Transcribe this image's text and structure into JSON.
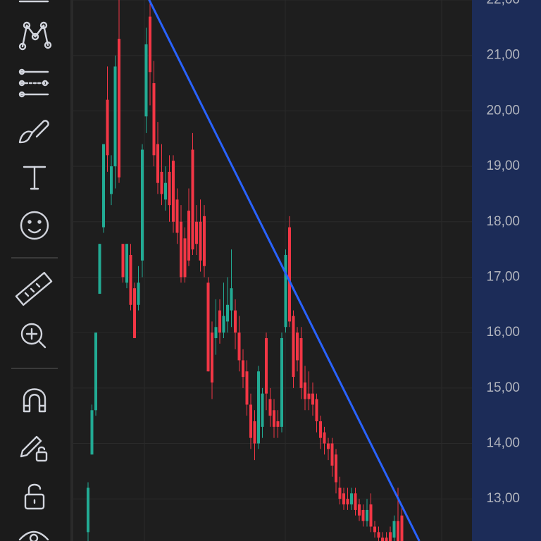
{
  "chart_data": {
    "type": "candlestick",
    "open": [
      12.4,
      13.8,
      14.6,
      16.7,
      17.9,
      20.2,
      18.5,
      19.0,
      21.3,
      17.6,
      16.9,
      17.4,
      16.8,
      16.5,
      17.3,
      19.9,
      21.7,
      20.5,
      19.4,
      18.9,
      18.4,
      18.9,
      19.1,
      18.4,
      18.0,
      17.7,
      18.2,
      19.3,
      18.0,
      18.0,
      18.1,
      16.9,
      16.0,
      15.9,
      16.4,
      16.0,
      16.2,
      16.4,
      16.4,
      16.0,
      15.5,
      15.3,
      14.7,
      14.4,
      14.0,
      14.3,
      15.9,
      14.8,
      14.6,
      14.4,
      14.3,
      16.1,
      17.9,
      16.3,
      16.0,
      15.9,
      15.1,
      14.9,
      14.9,
      14.8,
      14.4,
      14.2,
      14.0,
      14.0,
      13.8,
      13.2,
      13.1,
      13.0,
      12.9,
      13.1,
      12.9,
      12.8,
      12.6,
      12.9,
      12.5,
      12.4,
      12.3,
      12.3,
      12.4,
      12.3,
      12.6,
      12.7
    ],
    "high": [
      13.3,
      14.7,
      16.0,
      17.6,
      19.4,
      20.8,
      19.2,
      21.0,
      22.0,
      17.6,
      17.6,
      17.6,
      16.9,
      17.2,
      19.4,
      21.5,
      22.1,
      20.9,
      19.8,
      19.4,
      19.0,
      19.2,
      19.2,
      18.6,
      18.3,
      17.9,
      18.6,
      19.6,
      18.3,
      18.4,
      18.3,
      17.0,
      16.2,
      16.6,
      16.6,
      16.9,
      17.0,
      17.5,
      16.6,
      16.3,
      15.7,
      15.5,
      14.9,
      14.6,
      15.4,
      15.0,
      16.0,
      15.0,
      14.8,
      14.6,
      16.0,
      17.5,
      18.1,
      16.4,
      16.1,
      16.1,
      15.4,
      15.3,
      15.1,
      14.9,
      14.5,
      14.3,
      14.1,
      14.1,
      13.9,
      13.4,
      13.2,
      13.2,
      13.2,
      13.2,
      13.0,
      12.9,
      13.0,
      13.1,
      12.6,
      12.5,
      12.4,
      12.4,
      12.5,
      12.7,
      13.2,
      12.9
    ],
    "low": [
      12.2,
      13.8,
      14.5,
      16.7,
      17.8,
      18.9,
      18.3,
      18.6,
      18.7,
      16.9,
      16.8,
      16.4,
      15.9,
      16.4,
      17.0,
      19.6,
      20.1,
      19.0,
      18.5,
      18.3,
      18.2,
      18.0,
      17.8,
      17.6,
      16.9,
      16.9,
      17.2,
      17.4,
      17.4,
      17.1,
      17.0,
      15.3,
      14.8,
      15.6,
      15.8,
      15.9,
      16.0,
      16.1,
      15.7,
      15.3,
      15.0,
      14.5,
      13.9,
      13.7,
      13.9,
      14.1,
      14.6,
      14.3,
      14.1,
      14.1,
      14.2,
      16.0,
      16.1,
      15.0,
      15.3,
      14.8,
      14.6,
      14.6,
      14.5,
      14.2,
      13.9,
      13.8,
      13.7,
      13.4,
      13.1,
      12.9,
      12.8,
      12.8,
      12.8,
      12.7,
      12.6,
      12.5,
      12.5,
      12.4,
      12.3,
      12.2,
      12.1,
      12.1,
      12.1,
      12.2,
      12.1,
      12.1
    ],
    "close": [
      13.2,
      14.6,
      16.0,
      17.6,
      19.4,
      19.2,
      19.0,
      20.8,
      18.8,
      17.0,
      17.6,
      16.5,
      15.9,
      16.9,
      19.3,
      21.2,
      20.7,
      19.2,
      18.7,
      18.5,
      18.7,
      18.3,
      18.0,
      17.8,
      17.0,
      17.0,
      17.3,
      17.5,
      17.6,
      17.3,
      17.2,
      15.3,
      15.1,
      16.1,
      16.0,
      16.3,
      16.5,
      16.8,
      16.0,
      15.5,
      15.2,
      14.7,
      14.1,
      14.0,
      15.3,
      14.9,
      14.9,
      14.5,
      14.3,
      14.3,
      15.9,
      17.4,
      16.2,
      15.2,
      15.5,
      15.0,
      14.8,
      14.8,
      14.7,
      14.4,
      14.1,
      14.0,
      13.9,
      13.6,
      13.3,
      13.0,
      12.9,
      12.9,
      13.1,
      12.8,
      12.7,
      12.6,
      12.8,
      12.5,
      12.4,
      12.3,
      12.2,
      12.2,
      12.2,
      12.6,
      12.2,
      12.2
    ],
    "up_color": "#22ab94",
    "down_color": "#f23645",
    "trendline": {
      "x": [
        14.5,
        85.5
      ],
      "y": [
        22.18,
        12.24
      ],
      "color": "#2962ff"
    },
    "ylim": [
      12.24,
      22.0
    ],
    "yticks": [
      {
        "value": 22,
        "label": "22,00"
      },
      {
        "value": 21,
        "label": "21,00"
      },
      {
        "value": 20,
        "label": "20,00"
      },
      {
        "value": 19,
        "label": "19,00"
      },
      {
        "value": 18,
        "label": "18,00"
      },
      {
        "value": 17,
        "label": "17,00"
      },
      {
        "value": 16,
        "label": "16,00"
      },
      {
        "value": 15,
        "label": "15,00"
      },
      {
        "value": 14,
        "label": "14,00"
      },
      {
        "value": 13,
        "label": "13,00"
      }
    ],
    "grid": true
  }
}
